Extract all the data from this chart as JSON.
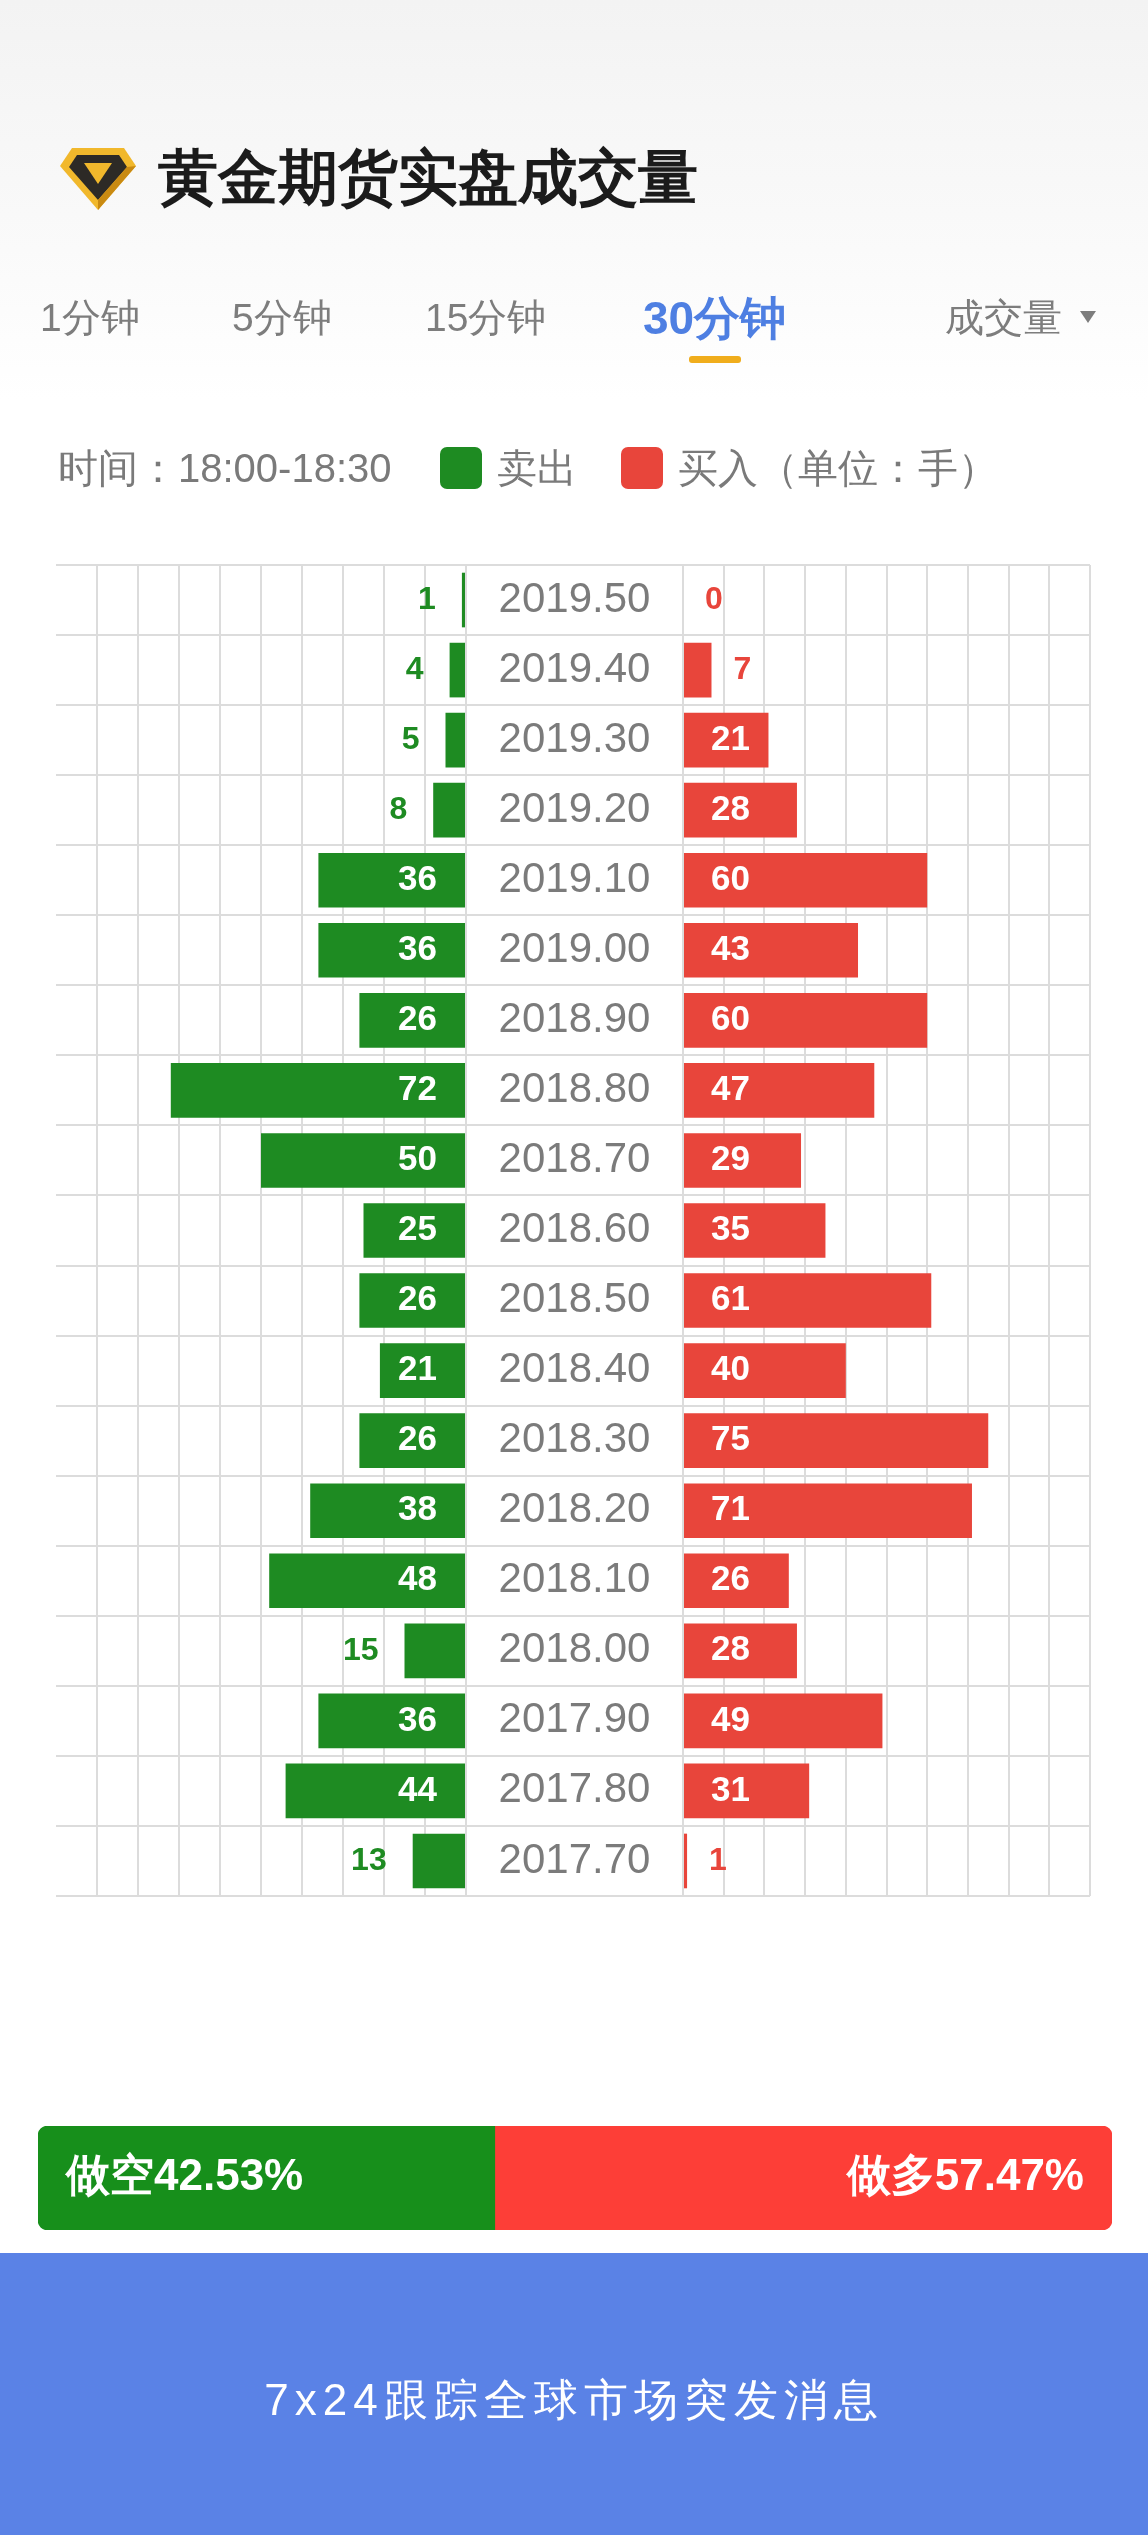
{
  "chart_data": [
    {
      "type": "bar",
      "orientation": "horizontal",
      "title": "黄金期货实盘成交量",
      "subtitle": "时间：18:00-18:30",
      "categories": [
        "2019.50",
        "2019.40",
        "2019.30",
        "2019.20",
        "2019.10",
        "2019.00",
        "2018.90",
        "2018.80",
        "2018.70",
        "2018.60",
        "2018.50",
        "2018.40",
        "2018.30",
        "2018.20",
        "2018.10",
        "2018.00",
        "2017.90",
        "2017.80",
        "2017.70"
      ],
      "series": [
        {
          "name": "卖出",
          "color": "#1e8b22",
          "values": [
            1,
            4,
            5,
            8,
            36,
            36,
            26,
            72,
            50,
            25,
            26,
            21,
            26,
            38,
            48,
            15,
            36,
            44,
            13
          ]
        }
      ],
      "xlim": [
        100,
        0
      ],
      "xticks": [
        {
          "value": 0,
          "label": null
        },
        {
          "value": 10,
          "label": null
        },
        {
          "value": 20,
          "label": null
        },
        {
          "value": 30,
          "label": null
        },
        {
          "value": 40,
          "label": null
        },
        {
          "value": 50,
          "label": null
        },
        {
          "value": 60,
          "label": null
        },
        {
          "value": 70,
          "label": null
        },
        {
          "value": 80,
          "label": null
        },
        {
          "value": 90,
          "label": null
        }
      ],
      "grid": true,
      "legend": "top",
      "tick_labels": "y",
      "data_labels": true,
      "annotations": [
        "1分钟",
        "5分钟",
        "15分钟",
        "30分钟",
        "成交量"
      ]
    },
    {
      "type": "bar",
      "orientation": "horizontal",
      "categories": [
        "2019.50",
        "2019.40",
        "2019.30",
        "2019.20",
        "2019.10",
        "2019.00",
        "2018.90",
        "2018.80",
        "2018.70",
        "2018.60",
        "2018.50",
        "2018.40",
        "2018.30",
        "2018.20",
        "2018.10",
        "2018.00",
        "2017.90",
        "2017.80",
        "2017.70"
      ],
      "series": [
        {
          "name": "买入",
          "color": "#e8453b",
          "values": [
            0,
            7,
            21,
            28,
            60,
            43,
            60,
            47,
            29,
            35,
            61,
            40,
            75,
            71,
            26,
            28,
            49,
            31,
            1
          ]
        }
      ],
      "xlim": [
        0,
        100
      ],
      "xticks": [
        {
          "value": 0,
          "label": null
        },
        {
          "value": 10,
          "label": null
        },
        {
          "value": 20,
          "label": null
        },
        {
          "value": 30,
          "label": null
        },
        {
          "value": 40,
          "label": null
        },
        {
          "value": 50,
          "label": null
        },
        {
          "value": 60,
          "label": null
        },
        {
          "value": 70,
          "label": null
        },
        {
          "value": 80,
          "label": null
        },
        {
          "value": 90,
          "label": null
        },
        {
          "value": 100,
          "label": null
        }
      ],
      "grid": true,
      "legend": "top",
      "tick_labels": false,
      "data_labels": true,
      "annotations": [
        "（单位：手）"
      ]
    },
    {
      "type": "bar",
      "orientation": "horizontal",
      "stacked": true,
      "categories": [
        null
      ],
      "series": [
        {
          "color": "#178f1b",
          "values": [
            42.53
          ],
          "value_labels": [
            "做空42.53%"
          ]
        },
        {
          "color": "#fd3e37",
          "values": [
            57.47
          ],
          "value_labels": [
            "做多57.47%"
          ]
        }
      ],
      "xlim": [
        0,
        100
      ],
      "tick_labels": false,
      "annotations": [
        "7x24跟踪全球市场突发消息"
      ]
    }
  ]
}
